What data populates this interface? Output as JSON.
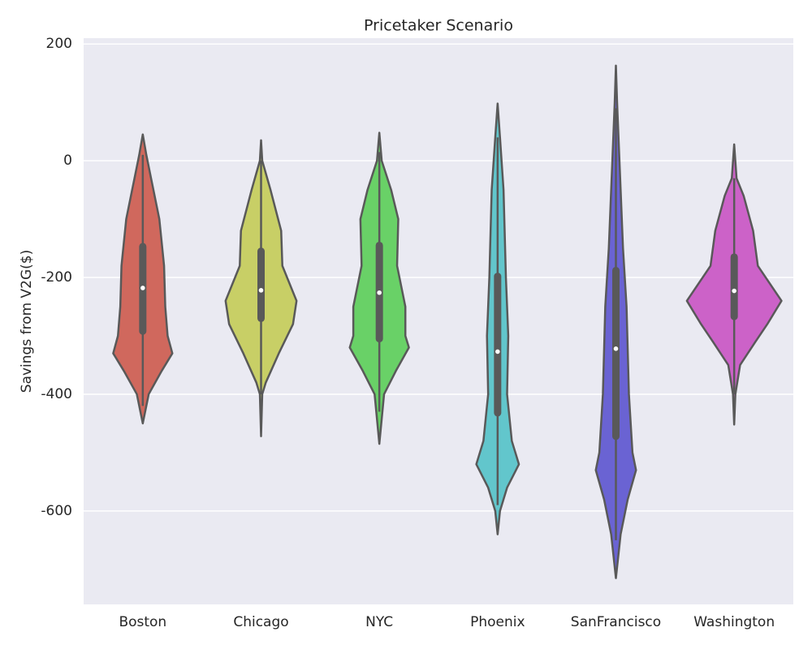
{
  "chart_data": {
    "type": "violin",
    "title": "Pricetaker Scenario",
    "y_label": "Savings from V2G($)",
    "categories": [
      "Boston",
      "Chicago",
      "NYC",
      "Phoenix",
      "SanFrancisco",
      "Washington"
    ],
    "ylim": [
      -760,
      210
    ],
    "yticks": [
      200,
      0,
      -200,
      -400,
      -600
    ],
    "grid": true,
    "line_color": "#595959",
    "violins": [
      {
        "color": "#d0685d",
        "density": [
          [
            45,
            0
          ],
          [
            10,
            0.03
          ],
          [
            -30,
            0.07
          ],
          [
            -100,
            0.14
          ],
          [
            -180,
            0.18
          ],
          [
            -250,
            0.19
          ],
          [
            -300,
            0.21
          ],
          [
            -330,
            0.25
          ],
          [
            -360,
            0.16
          ],
          [
            -400,
            0.05
          ],
          [
            -450,
            0
          ]
        ],
        "quartiles": [
          -292,
          -218,
          -147
        ],
        "whiskers": [
          -420,
          10
        ]
      },
      {
        "color": "#c8cf66",
        "density": [
          [
            35,
            0
          ],
          [
            0,
            0.01
          ],
          [
            -50,
            0.08
          ],
          [
            -120,
            0.17
          ],
          [
            -180,
            0.18
          ],
          [
            -240,
            0.3
          ],
          [
            -280,
            0.27
          ],
          [
            -330,
            0.15
          ],
          [
            -380,
            0.04
          ],
          [
            -400,
            0.01
          ],
          [
            -472,
            0
          ]
        ],
        "quartiles": [
          -270,
          -222,
          -155
        ],
        "whiskers": [
          -400,
          0
        ]
      },
      {
        "color": "#69d167",
        "density": [
          [
            48,
            0
          ],
          [
            0,
            0.02
          ],
          [
            -50,
            0.1
          ],
          [
            -100,
            0.16
          ],
          [
            -180,
            0.15
          ],
          [
            -250,
            0.22
          ],
          [
            -300,
            0.22
          ],
          [
            -320,
            0.25
          ],
          [
            -360,
            0.14
          ],
          [
            -400,
            0.04
          ],
          [
            -485,
            0
          ]
        ],
        "quartiles": [
          -305,
          -226,
          -145
        ],
        "whiskers": [
          -430,
          15
        ]
      },
      {
        "color": "#62c6cc",
        "density": [
          [
            98,
            0
          ],
          [
            40,
            0.02
          ],
          [
            -50,
            0.05
          ],
          [
            -200,
            0.07
          ],
          [
            -300,
            0.09
          ],
          [
            -400,
            0.08
          ],
          [
            -480,
            0.12
          ],
          [
            -520,
            0.18
          ],
          [
            -560,
            0.08
          ],
          [
            -600,
            0.02
          ],
          [
            -640,
            0
          ]
        ],
        "quartiles": [
          -432,
          -327,
          -198
        ],
        "whiskers": [
          -590,
          40
        ]
      },
      {
        "color": "#6a63d3",
        "density": [
          [
            163,
            0
          ],
          [
            100,
            0.01
          ],
          [
            0,
            0.03
          ],
          [
            -150,
            0.06
          ],
          [
            -250,
            0.09
          ],
          [
            -400,
            0.11
          ],
          [
            -500,
            0.14
          ],
          [
            -530,
            0.17
          ],
          [
            -580,
            0.1
          ],
          [
            -640,
            0.04
          ],
          [
            -715,
            0
          ]
        ],
        "quartiles": [
          -472,
          -322,
          -188
        ],
        "whiskers": [
          -650,
          90
        ]
      },
      {
        "color": "#cc62c8",
        "density": [
          [
            28,
            0
          ],
          [
            -30,
            0.02
          ],
          [
            -60,
            0.08
          ],
          [
            -120,
            0.16
          ],
          [
            -180,
            0.2
          ],
          [
            -240,
            0.4
          ],
          [
            -280,
            0.28
          ],
          [
            -310,
            0.18
          ],
          [
            -350,
            0.05
          ],
          [
            -400,
            0.01
          ],
          [
            -452,
            0
          ]
        ],
        "quartiles": [
          -267,
          -223,
          -165
        ],
        "whiskers": [
          -400,
          -30
        ]
      }
    ]
  }
}
